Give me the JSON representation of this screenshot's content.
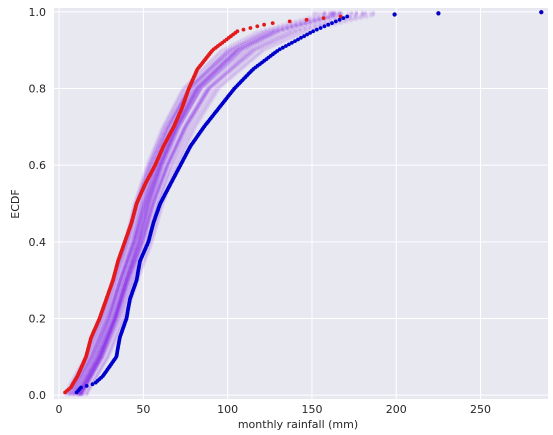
{
  "chart_data": {
    "type": "scatter",
    "title": "",
    "xlabel": "monthly rainfall (mm)",
    "ylabel": "ECDF",
    "xlim": [
      -3,
      290
    ],
    "ylim": [
      -0.01,
      1.01
    ],
    "xticks": [
      0,
      50,
      100,
      150,
      200,
      250
    ],
    "yticks": [
      0.0,
      0.2,
      0.4,
      0.6,
      0.8,
      1.0
    ],
    "xtick_labels": [
      "0",
      "50",
      "100",
      "150",
      "200",
      "250"
    ],
    "ytick_labels": [
      "0.0",
      "0.2",
      "0.4",
      "0.6",
      "0.8",
      "1.0"
    ],
    "grid": true,
    "background": "#e8e8f0",
    "series": [
      {
        "role": "bootstrap-cloud",
        "color": "#8a2be2",
        "opacity": 0.05,
        "curve_count": 40,
        "x_range": [
          [
            8,
            14
          ],
          [
            28,
            34
          ],
          [
            44,
            50
          ],
          [
            54,
            62
          ],
          [
            66,
            75
          ],
          [
            80,
            92
          ],
          [
            100,
            115
          ],
          [
            125,
            140
          ],
          [
            160,
            170
          ]
        ],
        "curve": [
          [
            0.005,
            10
          ],
          [
            0.1,
            22
          ],
          [
            0.2,
            31
          ],
          [
            0.3,
            38
          ],
          [
            0.4,
            46
          ],
          [
            0.5,
            52
          ],
          [
            0.6,
            60
          ],
          [
            0.7,
            70
          ],
          [
            0.8,
            83
          ],
          [
            0.9,
            108
          ],
          [
            0.95,
            132
          ],
          [
            0.99,
            168
          ]
        ]
      },
      {
        "role": "lower-bound",
        "color": "#e31a1c",
        "curve": [
          [
            0.005,
            3
          ],
          [
            0.02,
            7
          ],
          [
            0.05,
            11
          ],
          [
            0.1,
            16
          ],
          [
            0.15,
            19
          ],
          [
            0.2,
            24
          ],
          [
            0.25,
            28
          ],
          [
            0.3,
            32
          ],
          [
            0.35,
            35
          ],
          [
            0.4,
            39
          ],
          [
            0.45,
            43
          ],
          [
            0.5,
            46
          ],
          [
            0.55,
            51
          ],
          [
            0.6,
            57
          ],
          [
            0.65,
            62
          ],
          [
            0.7,
            68
          ],
          [
            0.75,
            73
          ],
          [
            0.8,
            77
          ],
          [
            0.85,
            82
          ],
          [
            0.9,
            91
          ],
          [
            0.95,
            106
          ],
          [
            0.97,
            125
          ],
          [
            0.99,
            172
          ],
          [
            0.993,
            199
          ],
          [
            0.996,
            225
          ],
          [
            0.999,
            286
          ]
        ]
      },
      {
        "role": "upper-bound",
        "color": "#0000cd",
        "curve": [
          [
            0.005,
            10
          ],
          [
            0.02,
            13
          ],
          [
            0.03,
            21
          ],
          [
            0.05,
            26
          ],
          [
            0.1,
            34
          ],
          [
            0.15,
            36
          ],
          [
            0.2,
            40
          ],
          [
            0.25,
            42
          ],
          [
            0.3,
            46
          ],
          [
            0.35,
            48
          ],
          [
            0.4,
            53
          ],
          [
            0.45,
            56
          ],
          [
            0.5,
            60
          ],
          [
            0.55,
            66
          ],
          [
            0.6,
            72
          ],
          [
            0.65,
            78
          ],
          [
            0.7,
            86
          ],
          [
            0.75,
            95
          ],
          [
            0.8,
            104
          ],
          [
            0.85,
            115
          ],
          [
            0.9,
            130
          ],
          [
            0.95,
            151
          ],
          [
            0.99,
            172
          ],
          [
            0.993,
            199
          ],
          [
            0.996,
            225
          ],
          [
            0.999,
            286
          ]
        ]
      }
    ]
  }
}
